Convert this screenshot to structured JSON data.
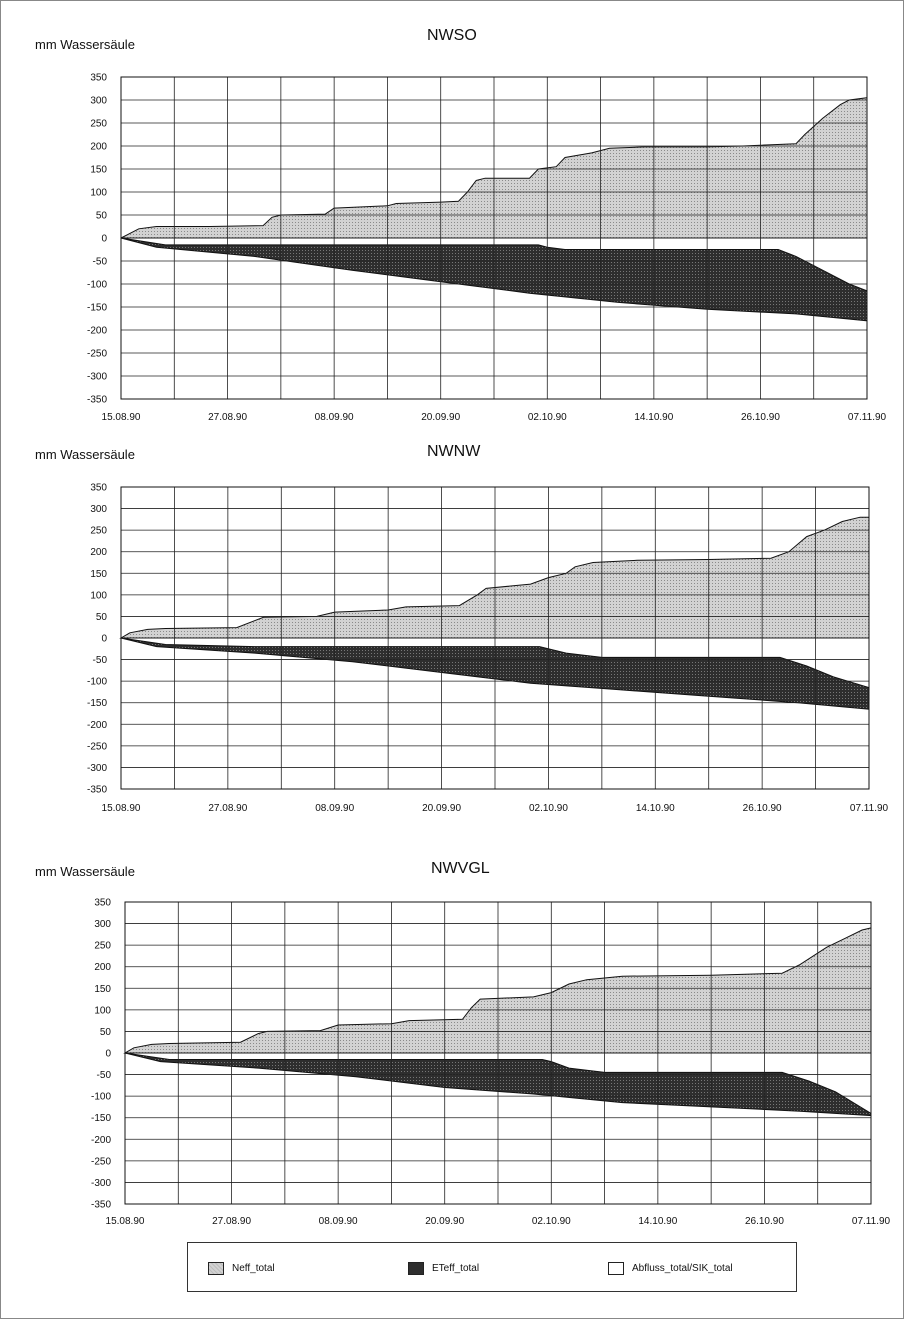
{
  "chart_data": [
    {
      "type": "area",
      "title": "NWSO",
      "ylabel": "mm Wassersäule",
      "ylim": [
        -350,
        350
      ],
      "yticks": [
        350,
        300,
        250,
        200,
        150,
        100,
        50,
        0,
        -50,
        -100,
        -150,
        -200,
        -250,
        -300,
        -350
      ],
      "xlim": [
        "15.08.90",
        "07.11.90"
      ],
      "xticks": [
        "15.08.90",
        "27.08.90",
        "08.09.90",
        "20.09.90",
        "02.10.90",
        "14.10.90",
        "26.10.90",
        "07.11.90"
      ],
      "grid": true,
      "series": [
        {
          "name": "Neff_total",
          "points": [
            [
              "15.08.90",
              0
            ],
            [
              "16.08.90",
              10
            ],
            [
              "17.08.90",
              20
            ],
            [
              "19.08.90",
              25
            ],
            [
              "25.08.90",
              25
            ],
            [
              "31.08.90",
              27
            ],
            [
              "01.09.90",
              45
            ],
            [
              "02.09.90",
              50
            ],
            [
              "07.09.90",
              52
            ],
            [
              "08.09.90",
              65
            ],
            [
              "14.09.90",
              70
            ],
            [
              "15.09.90",
              75
            ],
            [
              "20.09.90",
              78
            ],
            [
              "22.09.90",
              80
            ],
            [
              "23.09.90",
              100
            ],
            [
              "24.09.90",
              125
            ],
            [
              "25.09.90",
              130
            ],
            [
              "30.09.90",
              130
            ],
            [
              "01.10.90",
              150
            ],
            [
              "03.10.90",
              155
            ],
            [
              "04.10.90",
              175
            ],
            [
              "07.10.90",
              185
            ],
            [
              "09.10.90",
              195
            ],
            [
              "13.10.90",
              198
            ],
            [
              "20.10.90",
              198
            ],
            [
              "24.10.90",
              200
            ],
            [
              "30.10.90",
              205
            ],
            [
              "31.10.90",
              225
            ],
            [
              "02.11.90",
              260
            ],
            [
              "04.11.90",
              290
            ],
            [
              "05.11.90",
              300
            ],
            [
              "07.11.90",
              305
            ]
          ]
        },
        {
          "name": "ETeff_total",
          "points": [
            [
              "15.08.90",
              0
            ],
            [
              "19.08.90",
              -20
            ],
            [
              "30.08.90",
              -40
            ],
            [
              "10.09.90",
              -70
            ],
            [
              "20.09.90",
              -95
            ],
            [
              "30.09.90",
              -120
            ],
            [
              "10.10.90",
              -140
            ],
            [
              "20.10.90",
              -155
            ],
            [
              "30.10.90",
              -165
            ],
            [
              "07.11.90",
              -180
            ]
          ]
        },
        {
          "name": "Abfluss_total/SIK_total",
          "points": [
            [
              "15.08.90",
              0
            ],
            [
              "20.08.90",
              -15
            ],
            [
              "01.10.90",
              -15
            ],
            [
              "02.10.90",
              -20
            ],
            [
              "04.10.90",
              -25
            ],
            [
              "28.10.90",
              -25
            ],
            [
              "30.10.90",
              -40
            ],
            [
              "02.11.90",
              -70
            ],
            [
              "05.11.90",
              -100
            ],
            [
              "07.11.90",
              -115
            ]
          ]
        }
      ]
    },
    {
      "type": "area",
      "title": "NWNW",
      "ylabel": "mm Wassersäule",
      "ylim": [
        -350,
        350
      ],
      "yticks": [
        350,
        300,
        250,
        200,
        150,
        100,
        50,
        0,
        -50,
        -100,
        -150,
        -200,
        -250,
        -300,
        -350
      ],
      "xlim": [
        "15.08.90",
        "07.11.90"
      ],
      "xticks": [
        "15.08.90",
        "27.08.90",
        "08.09.90",
        "20.09.90",
        "02.10.90",
        "14.10.90",
        "26.10.90",
        "07.11.90"
      ],
      "grid": true,
      "series": [
        {
          "name": "Neff_total",
          "points": [
            [
              "15.08.90",
              0
            ],
            [
              "16.08.90",
              12
            ],
            [
              "18.08.90",
              20
            ],
            [
              "20.08.90",
              22
            ],
            [
              "28.08.90",
              24
            ],
            [
              "30.08.90",
              40
            ],
            [
              "31.08.90",
              48
            ],
            [
              "06.09.90",
              50
            ],
            [
              "08.09.90",
              60
            ],
            [
              "14.09.90",
              65
            ],
            [
              "16.09.90",
              72
            ],
            [
              "22.09.90",
              75
            ],
            [
              "24.09.90",
              100
            ],
            [
              "25.09.90",
              115
            ],
            [
              "30.09.90",
              125
            ],
            [
              "02.10.90",
              140
            ],
            [
              "04.10.90",
              150
            ],
            [
              "05.10.90",
              165
            ],
            [
              "07.10.90",
              175
            ],
            [
              "12.10.90",
              180
            ],
            [
              "20.10.90",
              182
            ],
            [
              "27.10.90",
              185
            ],
            [
              "29.10.90",
              200
            ],
            [
              "31.10.90",
              235
            ],
            [
              "02.11.90",
              250
            ],
            [
              "04.11.90",
              270
            ],
            [
              "06.11.90",
              280
            ],
            [
              "07.11.90",
              280
            ]
          ]
        },
        {
          "name": "ETeff_total",
          "points": [
            [
              "15.08.90",
              0
            ],
            [
              "19.08.90",
              -20
            ],
            [
              "30.08.90",
              -35
            ],
            [
              "10.09.90",
              -55
            ],
            [
              "20.09.90",
              -80
            ],
            [
              "30.09.90",
              -105
            ],
            [
              "10.10.90",
              -120
            ],
            [
              "20.10.90",
              -135
            ],
            [
              "30.10.90",
              -150
            ],
            [
              "07.11.90",
              -165
            ]
          ]
        },
        {
          "name": "Abfluss_total/SIK_total",
          "points": [
            [
              "15.08.90",
              0
            ],
            [
              "20.08.90",
              -15
            ],
            [
              "30.08.90",
              -20
            ],
            [
              "01.10.90",
              -20
            ],
            [
              "04.10.90",
              -35
            ],
            [
              "08.10.90",
              -45
            ],
            [
              "28.10.90",
              -45
            ],
            [
              "31.10.90",
              -65
            ],
            [
              "03.11.90",
              -90
            ],
            [
              "07.11.90",
              -115
            ]
          ]
        }
      ]
    },
    {
      "type": "area",
      "title": "NWVGL",
      "ylabel": "mm Wassersäule",
      "ylim": [
        -350,
        350
      ],
      "yticks": [
        350,
        300,
        250,
        200,
        150,
        100,
        50,
        0,
        -50,
        -100,
        -150,
        -200,
        -250,
        -300,
        -350
      ],
      "xlim": [
        "15.08.90",
        "07.11.90"
      ],
      "xticks": [
        "15.08.90",
        "27.08.90",
        "08.09.90",
        "20.09.90",
        "02.10.90",
        "14.10.90",
        "26.10.90",
        "07.11.90"
      ],
      "grid": true,
      "series": [
        {
          "name": "Neff_total",
          "points": [
            [
              "15.08.90",
              0
            ],
            [
              "16.08.90",
              12
            ],
            [
              "18.08.90",
              20
            ],
            [
              "20.08.90",
              22
            ],
            [
              "28.08.90",
              25
            ],
            [
              "30.08.90",
              45
            ],
            [
              "31.08.90",
              50
            ],
            [
              "06.09.90",
              52
            ],
            [
              "08.09.90",
              65
            ],
            [
              "14.09.90",
              68
            ],
            [
              "16.09.90",
              75
            ],
            [
              "22.09.90",
              78
            ],
            [
              "23.09.90",
              105
            ],
            [
              "24.09.90",
              125
            ],
            [
              "30.09.90",
              130
            ],
            [
              "02.10.90",
              140
            ],
            [
              "04.10.90",
              160
            ],
            [
              "06.10.90",
              170
            ],
            [
              "10.10.90",
              178
            ],
            [
              "20.10.90",
              180
            ],
            [
              "28.10.90",
              185
            ],
            [
              "30.10.90",
              205
            ],
            [
              "02.11.90",
              245
            ],
            [
              "04.11.90",
              265
            ],
            [
              "06.11.90",
              285
            ],
            [
              "07.11.90",
              290
            ]
          ]
        },
        {
          "name": "ETeff_total",
          "points": [
            [
              "15.08.90",
              0
            ],
            [
              "19.08.90",
              -20
            ],
            [
              "30.08.90",
              -35
            ],
            [
              "10.09.90",
              -55
            ],
            [
              "20.09.90",
              -80
            ],
            [
              "30.09.90",
              -95
            ],
            [
              "10.10.90",
              -115
            ],
            [
              "20.10.90",
              -125
            ],
            [
              "30.10.90",
              -135
            ],
            [
              "07.11.90",
              -145
            ]
          ]
        },
        {
          "name": "Abfluss_total/SIK_total",
          "points": [
            [
              "15.08.90",
              0
            ],
            [
              "20.08.90",
              -15
            ],
            [
              "01.10.90",
              -15
            ],
            [
              "02.10.90",
              -20
            ],
            [
              "04.10.90",
              -35
            ],
            [
              "08.10.90",
              -45
            ],
            [
              "28.10.90",
              -45
            ],
            [
              "31.10.90",
              -65
            ],
            [
              "03.11.90",
              -90
            ],
            [
              "07.11.90",
              -140
            ]
          ]
        }
      ]
    }
  ],
  "legend": {
    "items": [
      {
        "label": "Neff_total",
        "color": "#d2d2d2"
      },
      {
        "label": "ETeff_total",
        "color": "#2e2e2e"
      },
      {
        "label": "Abfluss_total/SIK_total",
        "color": "#ffffff"
      }
    ]
  },
  "colors": {
    "neff_fill": "#d2d2d2",
    "eteff_fill": "#2e2e2e",
    "abfluss_fill": "#ffffff",
    "outline": "#111111",
    "grid": "#222222"
  }
}
